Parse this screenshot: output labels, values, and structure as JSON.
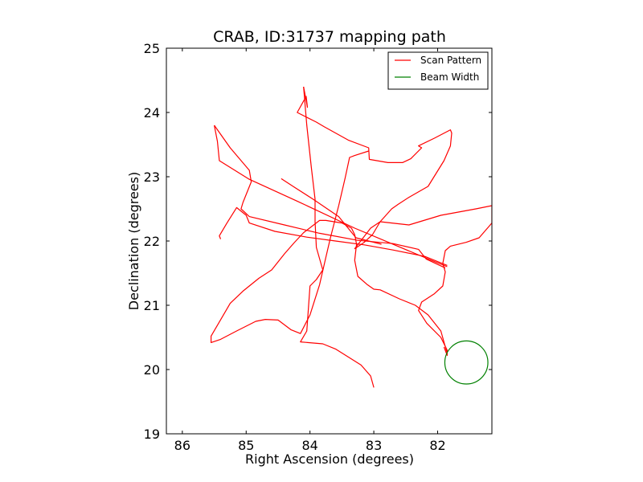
{
  "chart_data": {
    "type": "line",
    "title": "CRAB, ID:31737 mapping path",
    "xlabel": "Right Ascension (degrees)",
    "ylabel": "Declination (degrees)",
    "xlim": [
      86.25,
      81.15
    ],
    "ylim": [
      19,
      25
    ],
    "x_inverted": true,
    "xticks": [
      "86",
      "85",
      "84",
      "83",
      "82"
    ],
    "xtick_values": [
      86,
      85,
      84,
      83,
      82
    ],
    "yticks": [
      "19",
      "20",
      "21",
      "22",
      "23",
      "24",
      "25"
    ],
    "ytick_values": [
      19,
      20,
      21,
      22,
      23,
      24,
      25
    ],
    "grid": false,
    "legend_position": "top-right",
    "series": [
      {
        "name": "Scan Pattern",
        "color": "#ff0000",
        "points": [
          [
            84.1,
            24.4
          ],
          [
            84.04,
            24.08
          ],
          [
            84.06,
            24.25
          ],
          [
            84.2,
            24.0
          ],
          [
            83.9,
            23.85
          ],
          [
            83.78,
            23.78
          ],
          [
            83.4,
            23.57
          ],
          [
            83.08,
            23.45
          ],
          [
            83.07,
            23.27
          ],
          [
            82.78,
            23.22
          ],
          [
            82.55,
            23.22
          ],
          [
            82.42,
            23.28
          ],
          [
            82.25,
            23.45
          ],
          [
            82.3,
            23.48
          ],
          [
            82.05,
            23.6
          ],
          [
            81.8,
            23.73
          ],
          [
            81.78,
            23.68
          ],
          [
            81.8,
            23.48
          ],
          [
            81.9,
            23.25
          ],
          [
            82.15,
            22.85
          ],
          [
            82.45,
            22.68
          ],
          [
            82.62,
            22.57
          ],
          [
            82.72,
            22.5
          ],
          [
            82.9,
            22.3
          ],
          [
            83.02,
            22.1
          ],
          [
            83.15,
            21.98
          ],
          [
            83.3,
            21.88
          ],
          [
            83.05,
            22.2
          ],
          [
            82.9,
            22.3
          ],
          [
            82.45,
            22.25
          ],
          [
            81.95,
            22.4
          ],
          [
            81.4,
            22.5
          ],
          [
            81.15,
            22.55
          ],
          [
            81.15,
            22.28
          ],
          [
            81.35,
            22.05
          ],
          [
            81.55,
            21.98
          ],
          [
            81.8,
            21.92
          ],
          [
            81.88,
            21.85
          ],
          [
            81.92,
            21.65
          ],
          [
            81.88,
            21.52
          ],
          [
            81.92,
            21.3
          ],
          [
            82.05,
            21.18
          ],
          [
            82.25,
            21.05
          ],
          [
            82.3,
            20.92
          ],
          [
            82.17,
            20.72
          ],
          [
            81.95,
            20.5
          ],
          [
            81.85,
            20.3
          ],
          [
            81.85,
            20.22
          ],
          [
            81.9,
            20.35
          ]
        ]
      },
      {
        "name": "Scan Pattern",
        "color": "#ff0000",
        "points": [
          [
            85.5,
            23.8
          ],
          [
            85.45,
            23.55
          ],
          [
            85.42,
            23.25
          ],
          [
            84.95,
            22.96
          ],
          [
            84.2,
            22.62
          ],
          [
            83.3,
            22.2
          ],
          [
            82.1,
            21.7
          ],
          [
            81.85,
            21.6
          ]
        ]
      },
      {
        "name": "Scan Pattern",
        "color": "#ff0000",
        "points": [
          [
            85.5,
            23.8
          ],
          [
            85.25,
            23.45
          ],
          [
            84.95,
            23.1
          ],
          [
            84.92,
            22.92
          ],
          [
            85.05,
            22.6
          ],
          [
            85.08,
            22.5
          ],
          [
            84.95,
            22.38
          ],
          [
            84.4,
            22.25
          ],
          [
            83.85,
            22.12
          ],
          [
            83.25,
            22.01
          ],
          [
            82.7,
            21.96
          ],
          [
            82.3,
            21.87
          ],
          [
            82.18,
            21.72
          ],
          [
            81.88,
            21.58
          ]
        ]
      },
      {
        "name": "Scan Pattern",
        "color": "#ff0000",
        "points": [
          [
            85.4,
            22.03
          ],
          [
            85.42,
            22.08
          ],
          [
            85.3,
            22.28
          ],
          [
            85.15,
            22.52
          ],
          [
            85.0,
            22.4
          ],
          [
            84.95,
            22.28
          ],
          [
            84.55,
            22.15
          ],
          [
            84.05,
            22.06
          ],
          [
            83.6,
            22.0
          ],
          [
            83.15,
            21.94
          ],
          [
            82.7,
            21.86
          ],
          [
            82.2,
            21.76
          ],
          [
            81.85,
            21.62
          ]
        ]
      },
      {
        "name": "Scan Pattern",
        "color": "#ff0000",
        "points": [
          [
            84.1,
            24.4
          ],
          [
            84.05,
            23.8
          ],
          [
            83.98,
            23.15
          ],
          [
            83.92,
            22.65
          ],
          [
            83.92,
            22.3
          ],
          [
            83.9,
            21.9
          ],
          [
            83.8,
            21.55
          ],
          [
            83.9,
            21.4
          ],
          [
            84.0,
            21.3
          ],
          [
            84.05,
            20.6
          ],
          [
            84.15,
            20.43
          ],
          [
            83.8,
            20.4
          ],
          [
            83.6,
            20.32
          ],
          [
            83.2,
            20.07
          ],
          [
            83.05,
            19.9
          ],
          [
            83.0,
            19.72
          ]
        ]
      },
      {
        "name": "Scan Pattern",
        "color": "#ff0000",
        "points": [
          [
            83.08,
            23.4
          ],
          [
            83.3,
            23.33
          ],
          [
            83.38,
            23.3
          ],
          [
            83.45,
            22.98
          ],
          [
            83.55,
            22.55
          ],
          [
            83.68,
            22.05
          ],
          [
            83.75,
            21.75
          ],
          [
            83.85,
            21.32
          ],
          [
            84.0,
            20.85
          ],
          [
            84.15,
            20.56
          ],
          [
            84.3,
            20.62
          ],
          [
            84.5,
            20.77
          ],
          [
            84.7,
            20.78
          ],
          [
            84.85,
            20.75
          ],
          [
            85.15,
            20.6
          ],
          [
            85.4,
            20.47
          ],
          [
            85.55,
            20.42
          ],
          [
            85.55,
            20.52
          ],
          [
            85.25,
            21.03
          ],
          [
            85.05,
            21.22
          ],
          [
            84.8,
            21.42
          ],
          [
            84.6,
            21.55
          ],
          [
            84.4,
            21.8
          ],
          [
            84.25,
            21.97
          ],
          [
            84.1,
            22.13
          ],
          [
            83.85,
            22.32
          ],
          [
            83.75,
            22.32
          ],
          [
            83.5,
            22.28
          ],
          [
            83.35,
            22.2
          ],
          [
            83.3,
            22.1
          ],
          [
            83.27,
            21.95
          ],
          [
            83.3,
            21.7
          ],
          [
            83.25,
            21.45
          ],
          [
            83.1,
            21.32
          ],
          [
            83.0,
            21.25
          ],
          [
            82.9,
            21.24
          ],
          [
            82.6,
            21.1
          ],
          [
            82.35,
            21.0
          ],
          [
            82.15,
            20.85
          ],
          [
            81.95,
            20.6
          ],
          [
            81.85,
            20.25
          ]
        ]
      },
      {
        "name": "Scan Pattern",
        "color": "#ff0000",
        "points": [
          [
            84.45,
            22.97
          ],
          [
            84.25,
            22.84
          ],
          [
            83.95,
            22.65
          ],
          [
            83.55,
            22.38
          ],
          [
            83.28,
            22.05
          ],
          [
            82.88,
            21.95
          ]
        ]
      },
      {
        "name": "Beam Width",
        "color": "#008000",
        "shape": "circle",
        "center": [
          81.55,
          20.11
        ],
        "radius": 0.335
      }
    ],
    "legend": [
      {
        "label": "Scan Pattern",
        "color": "#ff0000"
      },
      {
        "label": "Beam Width",
        "color": "#008000"
      }
    ]
  }
}
